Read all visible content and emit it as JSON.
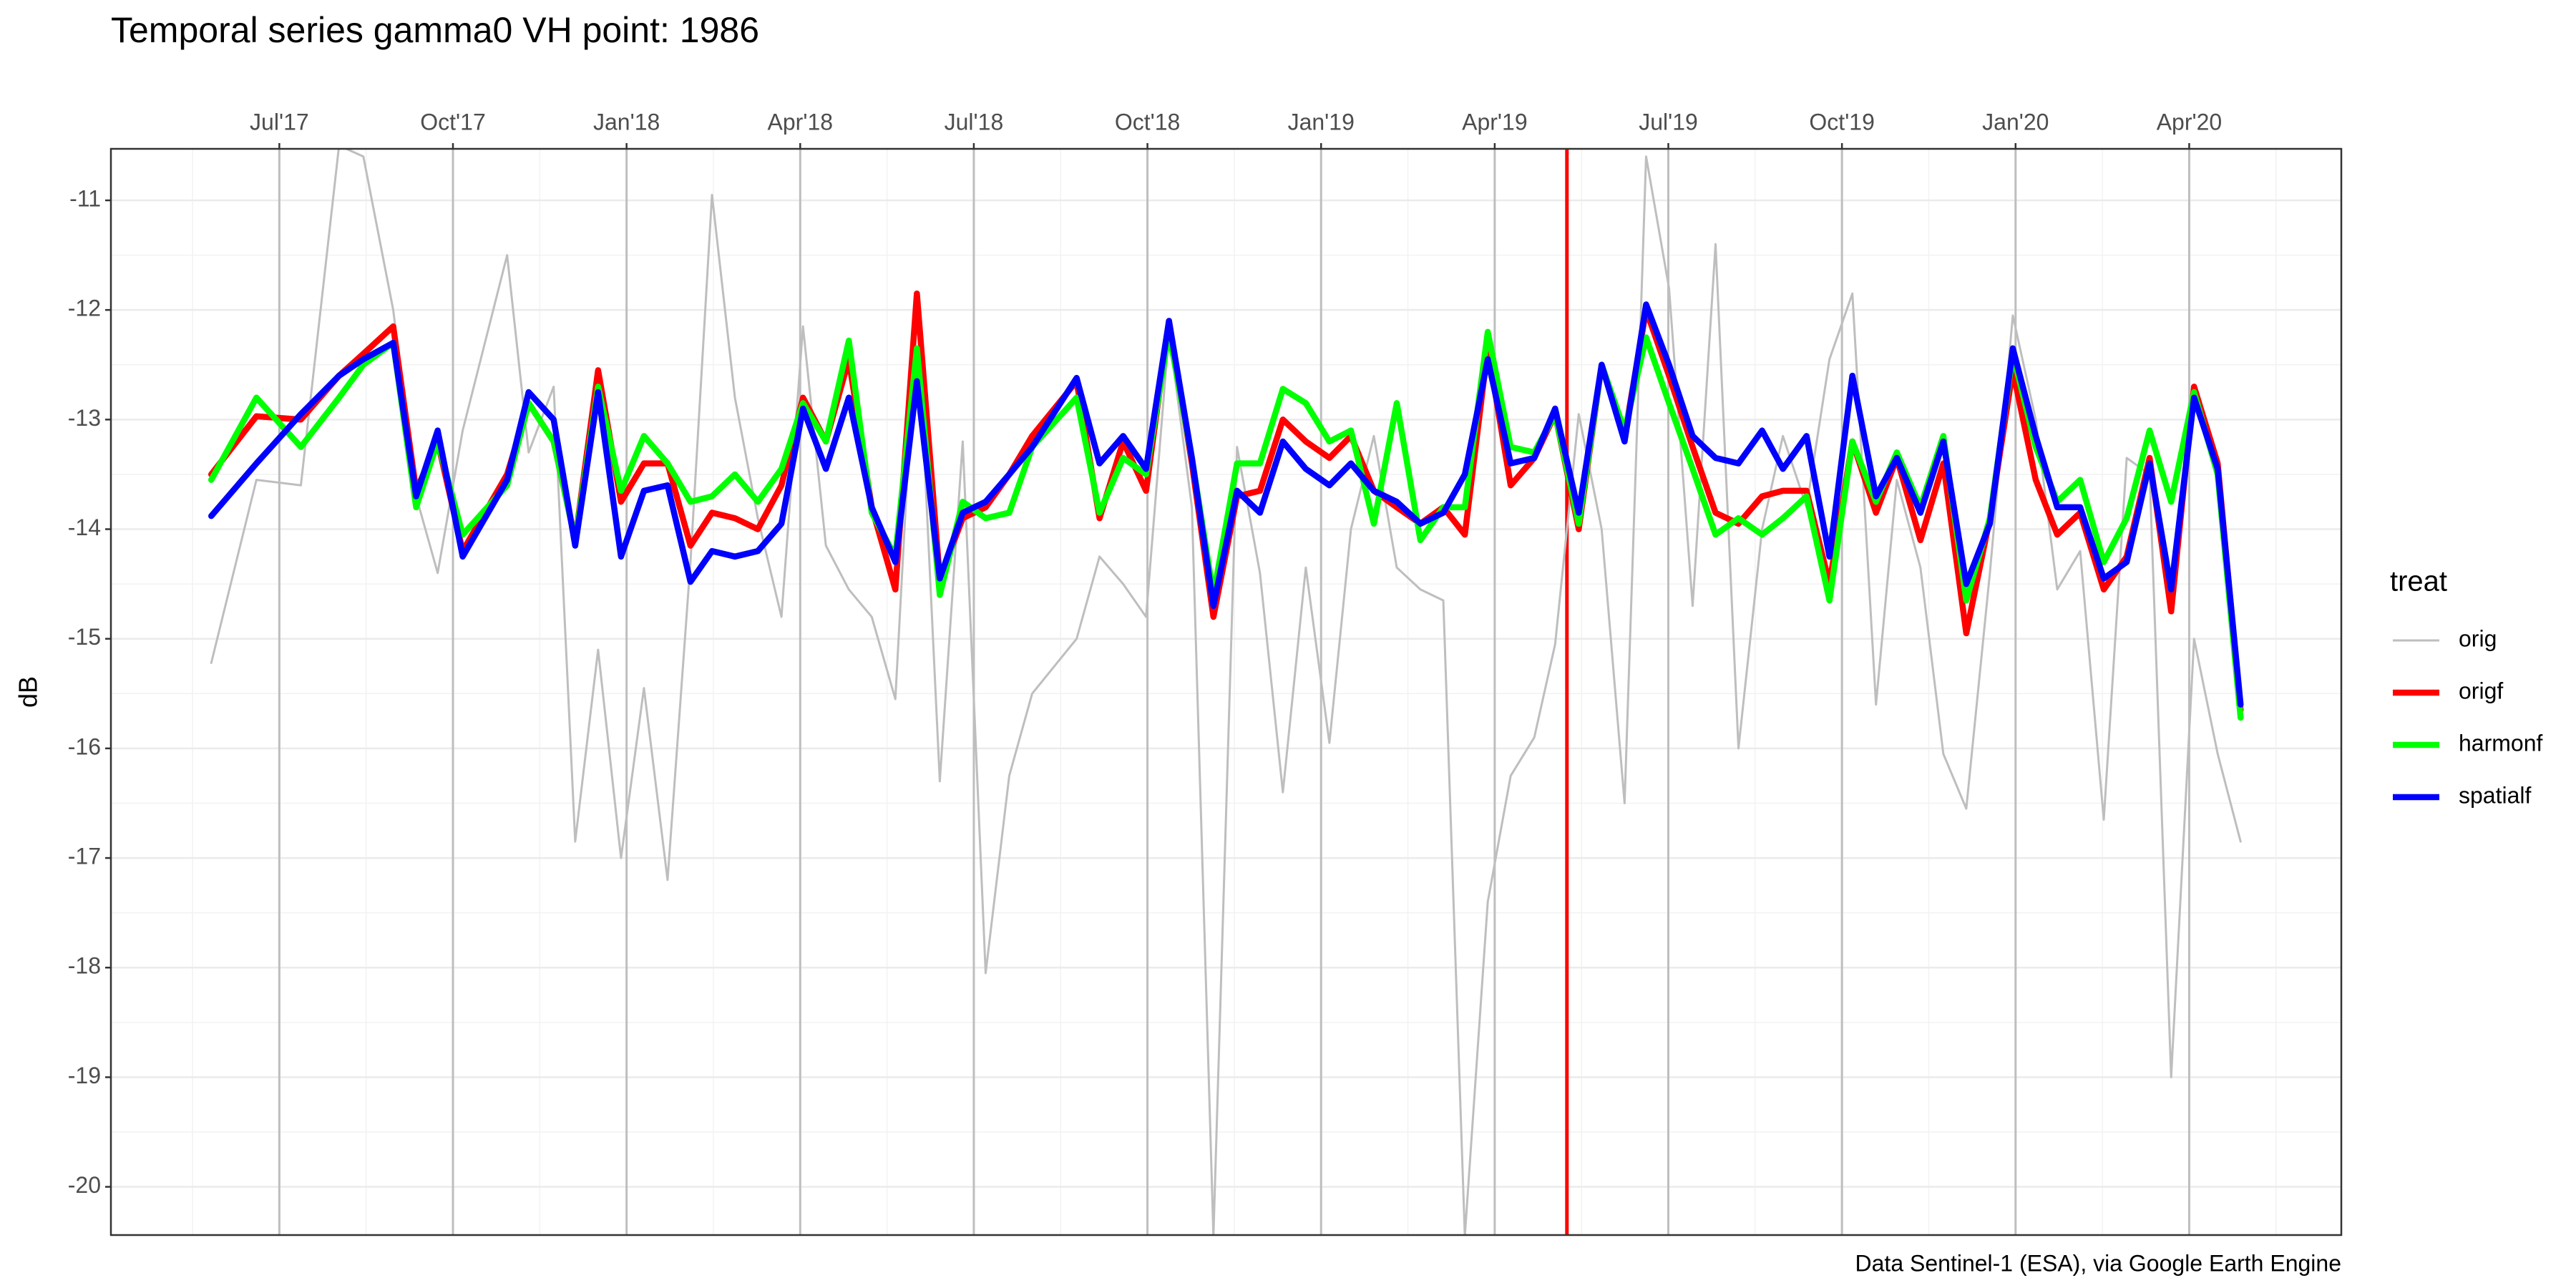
{
  "chart_data": {
    "type": "line",
    "title": "Temporal series gamma0 VH point: 1986",
    "y_label": "dB",
    "caption": "Data Sentinel-1 (ESA), via Google Earth Engine",
    "legend_title": "treat",
    "legend": "right",
    "grid": true,
    "xlim": [
      2017.2575,
      2020.469
    ],
    "ylim": [
      -20.44,
      -10.53
    ],
    "xticks": [
      {
        "value": 2017.5,
        "label": "Jul'17"
      },
      {
        "value": 2017.75,
        "label": "Oct'17"
      },
      {
        "value": 2018.0,
        "label": "Jan'18"
      },
      {
        "value": 2018.25,
        "label": "Apr'18"
      },
      {
        "value": 2018.5,
        "label": "Jul'18"
      },
      {
        "value": 2018.75,
        "label": "Oct'18"
      },
      {
        "value": 2019.0,
        "label": "Jan'19"
      },
      {
        "value": 2019.25,
        "label": "Apr'19"
      },
      {
        "value": 2019.5,
        "label": "Jul'19"
      },
      {
        "value": 2019.75,
        "label": "Oct'19"
      },
      {
        "value": 2020.0,
        "label": "Jan'20"
      },
      {
        "value": 2020.25,
        "label": "Apr'20"
      }
    ],
    "yticks": [
      -11,
      -12,
      -13,
      -14,
      -15,
      -16,
      -17,
      -18,
      -19,
      -20
    ],
    "vline": 2019.354,
    "vline_color": "#ff0000",
    "x": [
      2017.402,
      2017.467,
      2017.531,
      2017.586,
      2017.621,
      2017.664,
      2017.697,
      2017.728,
      2017.764,
      2017.828,
      2017.859,
      2017.895,
      2017.926,
      2017.959,
      2017.992,
      2018.025,
      2018.059,
      2018.092,
      2018.123,
      2018.156,
      2018.189,
      2018.223,
      2018.254,
      2018.287,
      2018.32,
      2018.353,
      2018.387,
      2018.418,
      2018.451,
      2018.484,
      2018.517,
      2018.551,
      2018.584,
      2018.648,
      2018.681,
      2018.715,
      2018.748,
      2018.781,
      2018.814,
      2018.845,
      2018.879,
      2018.912,
      2018.945,
      2018.978,
      2019.012,
      2019.043,
      2019.076,
      2019.109,
      2019.143,
      2019.176,
      2019.207,
      2019.24,
      2019.273,
      2019.307,
      2019.337,
      2019.371,
      2019.404,
      2019.437,
      2019.468,
      2019.501,
      2019.535,
      2019.568,
      2019.601,
      2019.635,
      2019.665,
      2019.699,
      2019.732,
      2019.765,
      2019.799,
      2019.829,
      2019.863,
      2019.896,
      2019.929,
      2019.963,
      2019.996,
      2020.029,
      2020.06,
      2020.093,
      2020.127,
      2020.16,
      2020.193,
      2020.224,
      2020.257,
      2020.291,
      2020.324
    ],
    "series": [
      {
        "name": "orig",
        "color": "#bebebe",
        "values": [
          -15.22,
          -13.55,
          -13.6,
          -10.5,
          -10.6,
          -12.0,
          -13.7,
          -14.4,
          -13.1,
          -11.5,
          -13.3,
          -12.7,
          -16.85,
          -15.1,
          -17.0,
          -15.45,
          -17.2,
          -14.3,
          -10.95,
          -12.8,
          -13.9,
          -14.8,
          -12.15,
          -14.15,
          -14.55,
          -14.8,
          -15.55,
          -11.9,
          -16.3,
          -13.2,
          -18.05,
          -16.25,
          -15.5,
          -15.0,
          -14.25,
          -14.5,
          -14.8,
          -12.2,
          -13.8,
          -20.45,
          -13.25,
          -14.4,
          -16.4,
          -14.35,
          -15.95,
          -14.0,
          -13.15,
          -14.35,
          -14.55,
          -14.65,
          -20.45,
          -17.4,
          -16.25,
          -15.9,
          -15.05,
          -12.95,
          -14.0,
          -16.5,
          -10.6,
          -11.8,
          -14.7,
          -11.4,
          -16.0,
          -14.0,
          -13.15,
          -13.8,
          -12.45,
          -11.85,
          -15.6,
          -13.55,
          -14.35,
          -16.05,
          -16.55,
          -14.4,
          -12.05,
          -13.0,
          -14.55,
          -14.2,
          -16.65,
          -13.35,
          -13.5,
          -19.0,
          -15.0,
          -16.05,
          -16.85
        ]
      },
      {
        "name": "origf",
        "color": "#ff0000",
        "values": [
          -13.5,
          -12.97,
          -13.0,
          -12.6,
          -12.4,
          -12.15,
          -13.65,
          -13.2,
          -14.2,
          -13.5,
          -12.85,
          -13.2,
          -14.1,
          -12.55,
          -13.75,
          -13.4,
          -13.4,
          -14.15,
          -13.85,
          -13.9,
          -14.0,
          -13.6,
          -12.8,
          -13.2,
          -12.45,
          -13.8,
          -14.55,
          -11.85,
          -14.45,
          -13.9,
          -13.8,
          -13.5,
          -13.15,
          -12.65,
          -13.9,
          -13.2,
          -13.65,
          -12.1,
          -13.4,
          -14.8,
          -13.7,
          -13.65,
          -13.0,
          -13.2,
          -13.35,
          -13.15,
          -13.65,
          -13.8,
          -13.95,
          -13.8,
          -14.05,
          -12.35,
          -13.6,
          -13.35,
          -12.95,
          -14.0,
          -12.5,
          -13.15,
          -12.0,
          -12.6,
          -13.25,
          -13.85,
          -13.95,
          -13.7,
          -13.65,
          -13.65,
          -14.5,
          -13.2,
          -13.85,
          -13.35,
          -14.1,
          -13.4,
          -14.95,
          -13.9,
          -12.55,
          -13.55,
          -14.05,
          -13.85,
          -14.55,
          -14.25,
          -13.35,
          -14.75,
          -12.7,
          -13.4,
          -15.65
        ]
      },
      {
        "name": "harmonf",
        "color": "#00ff00",
        "values": [
          -13.55,
          -12.8,
          -13.25,
          -12.8,
          -12.5,
          -12.3,
          -13.8,
          -13.2,
          -14.05,
          -13.6,
          -12.85,
          -13.2,
          -14.1,
          -12.7,
          -13.65,
          -13.15,
          -13.4,
          -13.75,
          -13.7,
          -13.5,
          -13.75,
          -13.45,
          -12.85,
          -13.2,
          -12.28,
          -13.85,
          -14.25,
          -12.35,
          -14.6,
          -13.75,
          -13.9,
          -13.85,
          -13.25,
          -12.8,
          -13.85,
          -13.35,
          -13.5,
          -12.2,
          -13.35,
          -14.6,
          -13.4,
          -13.4,
          -12.72,
          -12.85,
          -13.2,
          -13.1,
          -13.95,
          -12.85,
          -14.1,
          -13.8,
          -13.8,
          -12.2,
          -13.25,
          -13.3,
          -12.95,
          -13.95,
          -12.5,
          -13.1,
          -12.25,
          -12.85,
          -13.45,
          -14.05,
          -13.9,
          -14.05,
          -13.9,
          -13.7,
          -14.65,
          -13.2,
          -13.75,
          -13.3,
          -13.8,
          -13.15,
          -14.65,
          -13.9,
          -12.4,
          -13.25,
          -13.75,
          -13.55,
          -14.3,
          -13.9,
          -13.1,
          -13.75,
          -12.75,
          -13.5,
          -15.72
        ]
      },
      {
        "name": "spatialf",
        "color": "#0000ff",
        "values": [
          -13.88,
          -13.4,
          -12.95,
          -12.6,
          -12.45,
          -12.3,
          -13.7,
          -13.1,
          -14.25,
          -13.55,
          -12.75,
          -13.0,
          -14.15,
          -12.75,
          -14.25,
          -13.65,
          -13.6,
          -14.48,
          -14.2,
          -14.25,
          -14.2,
          -13.95,
          -12.9,
          -13.45,
          -12.8,
          -13.8,
          -14.3,
          -12.65,
          -14.45,
          -13.85,
          -13.75,
          -13.5,
          -13.25,
          -12.62,
          -13.4,
          -13.15,
          -13.45,
          -12.1,
          -13.35,
          -14.7,
          -13.65,
          -13.85,
          -13.2,
          -13.45,
          -13.6,
          -13.4,
          -13.65,
          -13.75,
          -13.95,
          -13.85,
          -13.5,
          -12.45,
          -13.4,
          -13.35,
          -12.9,
          -13.85,
          -12.5,
          -13.2,
          -11.95,
          -12.5,
          -13.15,
          -13.35,
          -13.4,
          -13.1,
          -13.45,
          -13.15,
          -14.25,
          -12.6,
          -13.7,
          -13.35,
          -13.85,
          -13.2,
          -14.5,
          -13.95,
          -12.35,
          -13.15,
          -13.8,
          -13.8,
          -14.45,
          -14.3,
          -13.4,
          -14.55,
          -12.8,
          -13.45,
          -15.6
        ]
      }
    ]
  }
}
